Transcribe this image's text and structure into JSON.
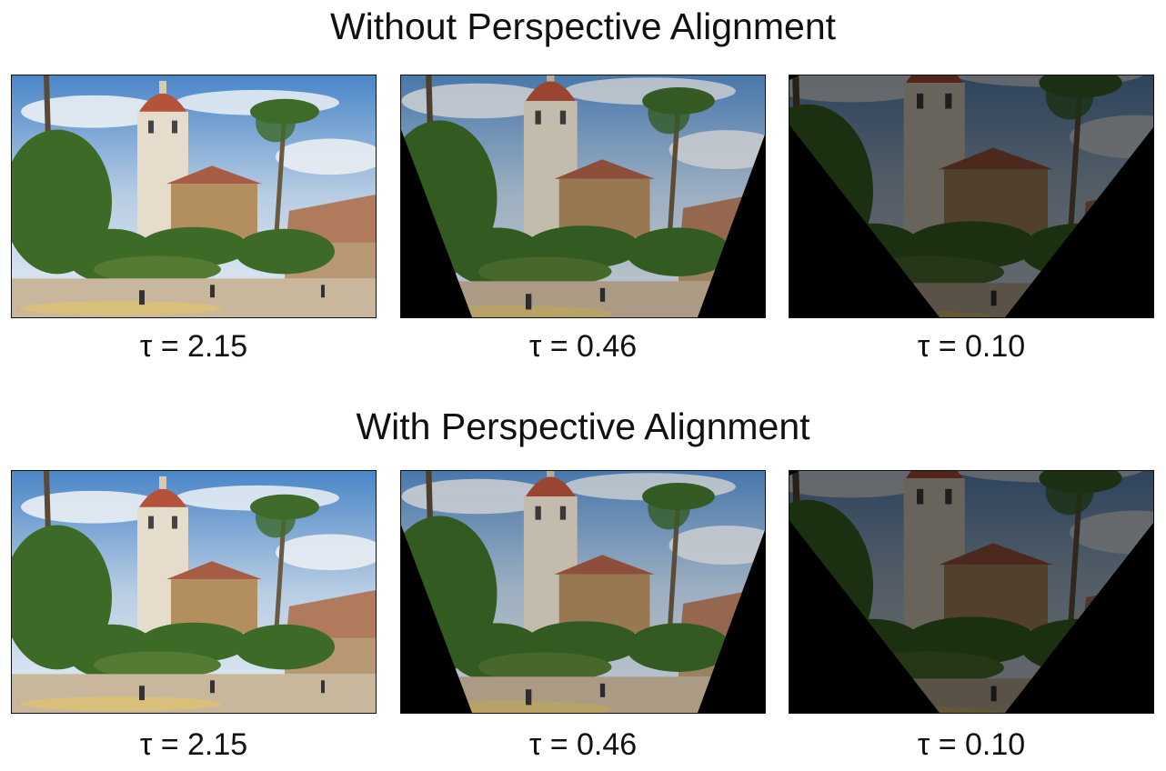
{
  "rows": [
    {
      "title": "Without Perspective Alignment",
      "panels": [
        {
          "label": "τ = 2.15",
          "brightness": 1.0,
          "warp": "none"
        },
        {
          "label": "τ = 0.46",
          "brightness": 0.85,
          "warp": "moderate"
        },
        {
          "label": "τ = 0.10",
          "brightness": 0.45,
          "warp": "strong"
        }
      ]
    },
    {
      "title": "With Perspective Alignment",
      "panels": [
        {
          "label": "τ = 2.15",
          "brightness": 1.0,
          "warp": "none"
        },
        {
          "label": "τ = 0.46",
          "brightness": 0.85,
          "warp": "moderate"
        },
        {
          "label": "τ = 0.10",
          "brightness": 0.45,
          "warp": "strong"
        }
      ]
    }
  ]
}
